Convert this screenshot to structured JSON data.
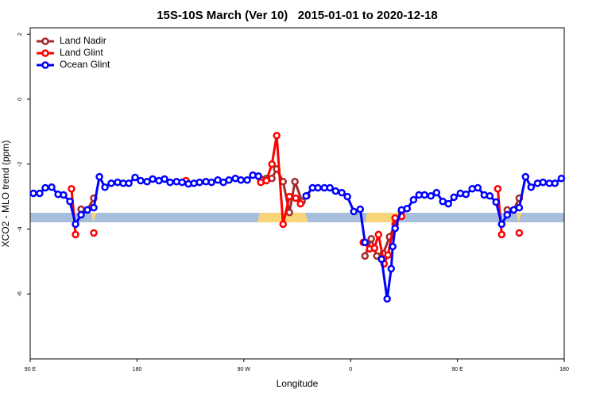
{
  "chart_data": {
    "type": "line",
    "title": "15S-10S March (Ver 10)   2015-01-01 to 2020-12-18",
    "x_label": "Longitude",
    "y_label": "XCO2 - MLO trend (ppm)",
    "xlim": [
      90,
      540
    ],
    "ylim": [
      -8,
      2.2
    ],
    "xticks": [
      {
        "value": 90,
        "label": "90 E"
      },
      180,
      {
        "value": 270,
        "label": "90 W"
      },
      {
        "value": 360,
        "label": "0"
      },
      {
        "value": 450,
        "label": "90 E"
      },
      {
        "value": 540,
        "label": "180"
      }
    ],
    "yticks": [
      2,
      0,
      -2,
      -4,
      -6
    ],
    "legend": "top-left",
    "series": [
      {
        "name": "Land Nadir",
        "color": "#a52a2a",
        "x": [
          132.9,
          138.2,
          143.6,
          null,
          284.3,
          289.0,
          293.7,
          297.7,
          303.1,
          308.4,
          313.1,
          319.1,
          323.1,
          null,
          372.1,
          377.4,
          382.1,
          387.5,
          392.8,
          397.5,
          402.9,
          null,
          492.0,
          497.4,
          502.1
        ],
        "values": [
          -3.39,
          -3.41,
          -3.05,
          null,
          -2.46,
          -2.44,
          -2.44,
          -2.15,
          -2.54,
          -3.49,
          -2.54,
          -3.15,
          -2.98,
          null,
          -4.83,
          -4.3,
          -4.83,
          -4.76,
          -4.24,
          -3.85,
          -3.46,
          null,
          -3.41,
          -3.41,
          -3.05
        ]
      },
      {
        "name": "Land Glint",
        "color": "#ff0000",
        "x": [
          124.8,
          128.2,
          null,
          143.6,
          null,
          221.3,
          null,
          284.3,
          289.0,
          293.7,
          297.7,
          303.1,
          308.4,
          313.8,
          317.8,
          null,
          370.7,
          376.1,
          380.1,
          383.5,
          388.2,
          391.5,
          397.5,
          402.9,
          null,
          484.0,
          487.3,
          null,
          502.1
        ],
        "values": [
          -2.76,
          -4.17,
          null,
          -4.12,
          null,
          -2.51,
          null,
          -2.56,
          -2.51,
          -2.0,
          -1.12,
          -3.85,
          -3.0,
          -3.05,
          -3.22,
          null,
          -4.41,
          -4.61,
          -4.59,
          -4.17,
          -5.07,
          -4.8,
          -3.66,
          -3.61,
          null,
          -2.76,
          -4.17,
          null,
          -4.12
        ]
      },
      {
        "name": "Ocean Glint",
        "color": "#0000ff",
        "x": [
          92.7,
          98.0,
          102.7,
          108.1,
          113.5,
          118.1,
          123.5,
          128.2,
          132.9,
          138.2,
          143.6,
          148.3,
          153.0,
          158.3,
          163.7,
          168.4,
          173.1,
          178.4,
          183.1,
          188.5,
          193.2,
          198.5,
          203.2,
          207.9,
          213.3,
          218.0,
          223.3,
          228.0,
          232.7,
          238.1,
          242.8,
          248.1,
          252.8,
          257.5,
          262.9,
          267.6,
          272.9,
          277.6,
          282.3,
          null,
          322.5,
          327.9,
          332.5,
          337.9,
          342.6,
          347.3,
          352.6,
          357.3,
          362.7,
          368.1,
          372.1,
          null,
          386.1,
          390.8,
          394.2,
          395.5,
          397.5,
          402.9,
          407.6,
          413.0,
          417.6,
          422.3,
          427.7,
          432.4,
          437.7,
          442.4,
          447.1,
          452.5,
          457.2,
          462.5,
          467.2,
          472.6,
          477.3,
          482.6,
          487.3,
          492.0,
          497.4,
          502.1,
          507.4,
          512.1,
          517.5,
          522.2,
          527.5,
          532.2,
          537.6
        ],
        "values": [
          -2.9,
          -2.9,
          -2.73,
          -2.71,
          -2.93,
          -2.95,
          -3.15,
          -3.85,
          -3.56,
          -3.41,
          -3.34,
          -2.39,
          -2.71,
          -2.59,
          -2.56,
          -2.59,
          -2.59,
          -2.41,
          -2.51,
          -2.54,
          -2.46,
          -2.51,
          -2.46,
          -2.56,
          -2.54,
          -2.56,
          -2.61,
          -2.59,
          -2.56,
          -2.54,
          -2.56,
          -2.49,
          -2.56,
          -2.49,
          -2.44,
          -2.49,
          -2.49,
          -2.34,
          -2.37,
          null,
          -2.98,
          -2.73,
          -2.73,
          -2.73,
          -2.73,
          -2.83,
          -2.88,
          -3.0,
          -3.46,
          -3.39,
          -4.41,
          null,
          -4.93,
          -6.15,
          -5.22,
          -4.54,
          -3.98,
          -3.41,
          -3.37,
          -3.1,
          -2.95,
          -2.95,
          -2.98,
          -2.88,
          -3.15,
          -3.22,
          -3.02,
          -2.9,
          -2.93,
          -2.76,
          -2.73,
          -2.95,
          -2.98,
          -3.17,
          -3.85,
          -3.56,
          -3.41,
          -3.34,
          -2.39,
          -2.71,
          -2.59,
          -2.56,
          -2.59,
          -2.59,
          -2.44
        ]
      }
    ]
  }
}
